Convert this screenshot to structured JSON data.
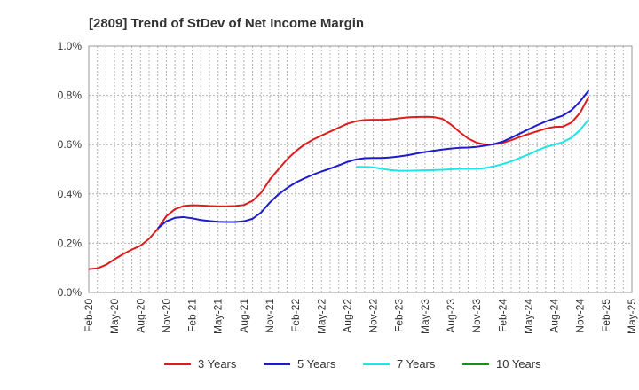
{
  "chart_data": {
    "type": "line",
    "title": "[2809]  Trend of StDev of Net Income Margin",
    "xlabel": "",
    "ylabel": "",
    "x_tick_labels": [
      "Feb-20",
      "May-20",
      "Aug-20",
      "Nov-20",
      "Feb-21",
      "May-21",
      "Aug-21",
      "Nov-21",
      "Feb-22",
      "May-22",
      "Aug-22",
      "Nov-22",
      "Feb-23",
      "May-23",
      "Aug-23",
      "Nov-23",
      "Feb-24",
      "May-24",
      "Aug-24",
      "Nov-24",
      "Feb-25",
      "May-25"
    ],
    "y_tick_labels": [
      "0.0%",
      "0.2%",
      "0.4%",
      "0.6%",
      "0.8%",
      "1.0%"
    ],
    "ylim": [
      0,
      1.0
    ],
    "y_unit": "%",
    "grid": true,
    "legend_position": "bottom",
    "series": [
      {
        "name": "3 Years",
        "color": "#dd1c1c",
        "points": [
          [
            0,
            0.095
          ],
          [
            1,
            0.098
          ],
          [
            2,
            0.112
          ],
          [
            3,
            0.135
          ],
          [
            4,
            0.156
          ],
          [
            5,
            0.174
          ],
          [
            6,
            0.19
          ],
          [
            7,
            0.218
          ],
          [
            8,
            0.258
          ],
          [
            9,
            0.31
          ],
          [
            10,
            0.338
          ],
          [
            11,
            0.351
          ],
          [
            12,
            0.354
          ],
          [
            13,
            0.353
          ],
          [
            14,
            0.351
          ],
          [
            15,
            0.35
          ],
          [
            16,
            0.35
          ],
          [
            17,
            0.351
          ],
          [
            18,
            0.355
          ],
          [
            19,
            0.372
          ],
          [
            20,
            0.405
          ],
          [
            21,
            0.458
          ],
          [
            22,
            0.5
          ],
          [
            23,
            0.54
          ],
          [
            24,
            0.573
          ],
          [
            25,
            0.6
          ],
          [
            26,
            0.62
          ],
          [
            27,
            0.637
          ],
          [
            28,
            0.653
          ],
          [
            29,
            0.669
          ],
          [
            30,
            0.685
          ],
          [
            31,
            0.695
          ],
          [
            32,
            0.7
          ],
          [
            33,
            0.701
          ],
          [
            34,
            0.701
          ],
          [
            35,
            0.703
          ],
          [
            36,
            0.707
          ],
          [
            37,
            0.711
          ],
          [
            38,
            0.712
          ],
          [
            39,
            0.713
          ],
          [
            40,
            0.712
          ],
          [
            41,
            0.705
          ],
          [
            42,
            0.682
          ],
          [
            43,
            0.652
          ],
          [
            44,
            0.625
          ],
          [
            45,
            0.608
          ],
          [
            46,
            0.6
          ],
          [
            47,
            0.601
          ],
          [
            48,
            0.607
          ],
          [
            49,
            0.618
          ],
          [
            50,
            0.631
          ],
          [
            51,
            0.643
          ],
          [
            52,
            0.654
          ],
          [
            53,
            0.665
          ],
          [
            54,
            0.672
          ],
          [
            55,
            0.673
          ],
          [
            56,
            0.69
          ],
          [
            57,
            0.73
          ],
          [
            58,
            0.795
          ]
        ]
      },
      {
        "name": "5 Years",
        "color": "#1c1ccc",
        "points": [
          [
            8,
            0.26
          ],
          [
            9,
            0.289
          ],
          [
            10,
            0.303
          ],
          [
            11,
            0.306
          ],
          [
            12,
            0.301
          ],
          [
            13,
            0.294
          ],
          [
            14,
            0.29
          ],
          [
            15,
            0.287
          ],
          [
            16,
            0.286
          ],
          [
            17,
            0.286
          ],
          [
            18,
            0.289
          ],
          [
            19,
            0.299
          ],
          [
            20,
            0.325
          ],
          [
            21,
            0.365
          ],
          [
            22,
            0.398
          ],
          [
            23,
            0.424
          ],
          [
            24,
            0.446
          ],
          [
            25,
            0.463
          ],
          [
            26,
            0.478
          ],
          [
            27,
            0.491
          ],
          [
            28,
            0.503
          ],
          [
            29,
            0.516
          ],
          [
            30,
            0.53
          ],
          [
            31,
            0.54
          ],
          [
            32,
            0.545
          ],
          [
            33,
            0.546
          ],
          [
            34,
            0.546
          ],
          [
            35,
            0.548
          ],
          [
            36,
            0.552
          ],
          [
            37,
            0.557
          ],
          [
            38,
            0.564
          ],
          [
            39,
            0.57
          ],
          [
            40,
            0.575
          ],
          [
            41,
            0.58
          ],
          [
            42,
            0.584
          ],
          [
            43,
            0.587
          ],
          [
            44,
            0.588
          ],
          [
            45,
            0.591
          ],
          [
            46,
            0.596
          ],
          [
            47,
            0.602
          ],
          [
            48,
            0.612
          ],
          [
            49,
            0.628
          ],
          [
            50,
            0.645
          ],
          [
            51,
            0.662
          ],
          [
            52,
            0.679
          ],
          [
            53,
            0.694
          ],
          [
            54,
            0.706
          ],
          [
            55,
            0.718
          ],
          [
            56,
            0.74
          ],
          [
            57,
            0.776
          ],
          [
            58,
            0.82
          ]
        ]
      },
      {
        "name": "7 Years",
        "color": "#1ce6e6",
        "points": [
          [
            31,
            0.51
          ],
          [
            32,
            0.51
          ],
          [
            33,
            0.508
          ],
          [
            34,
            0.502
          ],
          [
            35,
            0.497
          ],
          [
            36,
            0.494
          ],
          [
            37,
            0.494
          ],
          [
            38,
            0.495
          ],
          [
            39,
            0.496
          ],
          [
            40,
            0.497
          ],
          [
            41,
            0.498
          ],
          [
            42,
            0.5
          ],
          [
            43,
            0.502
          ],
          [
            44,
            0.502
          ],
          [
            45,
            0.502
          ],
          [
            46,
            0.505
          ],
          [
            47,
            0.512
          ],
          [
            48,
            0.521
          ],
          [
            49,
            0.532
          ],
          [
            50,
            0.546
          ],
          [
            51,
            0.56
          ],
          [
            52,
            0.576
          ],
          [
            53,
            0.59
          ],
          [
            54,
            0.6
          ],
          [
            55,
            0.61
          ],
          [
            56,
            0.628
          ],
          [
            57,
            0.66
          ],
          [
            58,
            0.703
          ]
        ]
      },
      {
        "name": "10 Years",
        "color": "#1c8c1c",
        "points": []
      }
    ]
  }
}
